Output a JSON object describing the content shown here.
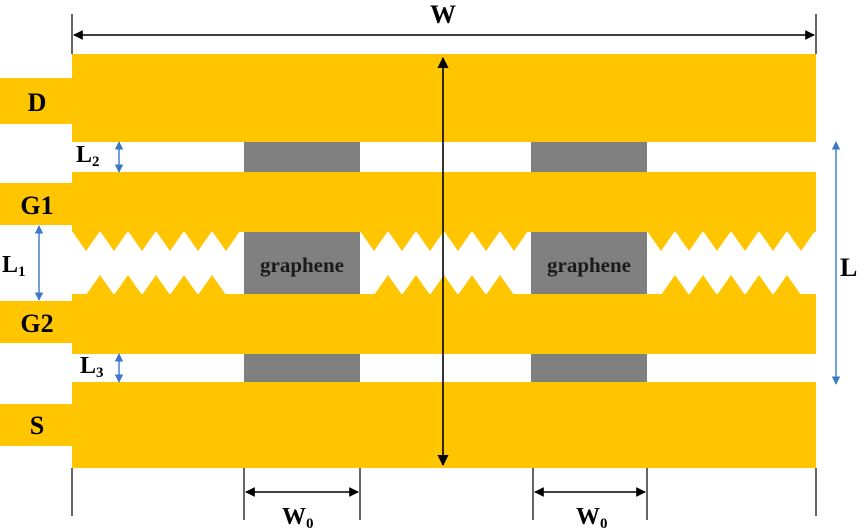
{
  "colors": {
    "electrode": "#FFC600",
    "graphene": "#808080",
    "dimension_black": "#000000",
    "dimension_blue": "#3A78C8",
    "background": "#FFFFFF"
  },
  "dimensions": {
    "W": "W",
    "L": "L",
    "L1": "L",
    "L1_sub": "1",
    "L2": "L",
    "L2_sub": "2",
    "L3": "L",
    "L3_sub": "3",
    "W0_left": "W",
    "W0_left_sub": "0",
    "W0_right": "W",
    "W0_right_sub": "0"
  },
  "electrodes": {
    "drain": "D",
    "gate1": "G1",
    "gate2": "G2",
    "source": "S"
  },
  "graphene": {
    "left_label": "graphene",
    "right_label": "graphene"
  }
}
